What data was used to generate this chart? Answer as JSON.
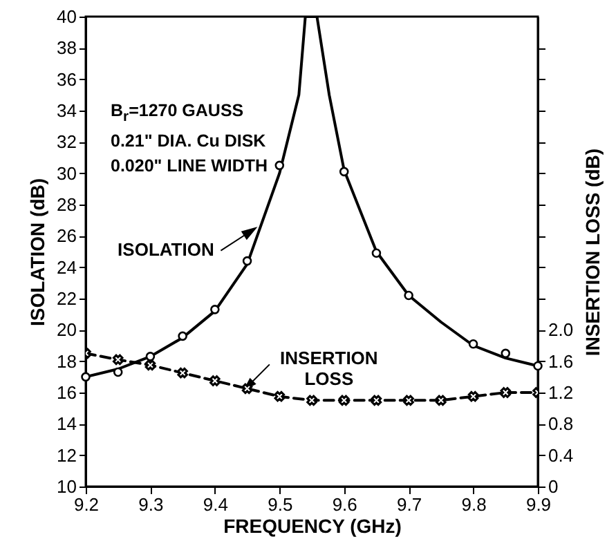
{
  "chart_data": {
    "type": "line",
    "xlabel": "FREQUENCY (GHz)",
    "ylabel": "ISOLATION (dB)",
    "y2label": "INSERTION LOSS (dB)",
    "xlim": [
      9.2,
      9.9
    ],
    "xticks": [
      9.2,
      9.3,
      9.4,
      9.5,
      9.6,
      9.7,
      9.8,
      9.9
    ],
    "ylim": [
      10,
      40
    ],
    "yticks": [
      10,
      12,
      14,
      16,
      18,
      20,
      22,
      24,
      26,
      28,
      30,
      32,
      34,
      36,
      38,
      40
    ],
    "y2lim": [
      0,
      6.0
    ],
    "y2ticks": [
      0,
      0.4,
      0.8,
      1.2,
      1.6,
      {
        "value": 2.0,
        "label": "2.0"
      },
      {
        "value": 2.4,
        "label": null
      },
      {
        "value": 2.8,
        "label": null
      },
      {
        "value": 3.2,
        "label": null
      },
      {
        "value": 3.6,
        "label": null
      },
      {
        "value": 4.0,
        "label": null
      },
      {
        "value": 4.4,
        "label": null
      },
      {
        "value": 4.8,
        "label": null
      },
      {
        "value": 5.2,
        "label": null
      },
      {
        "value": 5.6,
        "label": null
      }
    ],
    "series": [
      {
        "color": "#000000",
        "x": [
          9.2,
          9.25,
          9.3,
          9.35,
          9.4,
          9.45,
          9.5,
          9.53,
          9.54,
          9.558,
          9.577,
          9.6,
          9.65,
          9.7,
          9.75,
          9.8,
          9.85,
          9.9
        ],
        "values": [
          17.0,
          17.5,
          18.3,
          19.5,
          21.2,
          24.2,
          30.0,
          35.0,
          40,
          40,
          35.0,
          30.2,
          25.0,
          22.2,
          20.5,
          19.0,
          18.2,
          17.7
        ]
      },
      {
        "type": "scatter",
        "marker": "circle",
        "color": "#000000",
        "x": [
          9.2,
          9.25,
          9.3,
          9.35,
          9.4,
          9.45,
          9.5,
          9.6,
          9.65,
          9.7,
          9.8,
          9.85,
          9.9
        ],
        "values": [
          17.0,
          17.3,
          18.3,
          19.6,
          21.3,
          24.4,
          30.5,
          30.1,
          24.9,
          22.2,
          19.1,
          18.5,
          17.7
        ]
      },
      {
        "axis": "y2",
        "marker": "cross",
        "line_style": "dashed",
        "color": "#000000",
        "x": [
          9.2,
          9.25,
          9.3,
          9.35,
          9.4,
          9.45,
          9.5,
          9.55,
          9.6,
          9.65,
          9.7,
          9.75,
          9.8,
          9.85,
          9.9
        ],
        "values": [
          1.7,
          1.62,
          1.55,
          1.45,
          1.35,
          1.25,
          1.15,
          1.1,
          1.1,
          1.1,
          1.1,
          1.1,
          1.15,
          1.2,
          1.2
        ]
      }
    ],
    "annotations": [
      "B$_{r}$=1270 GAUSS",
      "0.21\" DIA. Cu DISK",
      "0.020\" LINE WIDTH",
      {
        "text": "ISOLATION",
        "x": 9.463,
        "y": 26.5
      },
      {
        "text": "INSERTION LOSS",
        "x": 9.446,
        "y": 16.2
      }
    ]
  }
}
